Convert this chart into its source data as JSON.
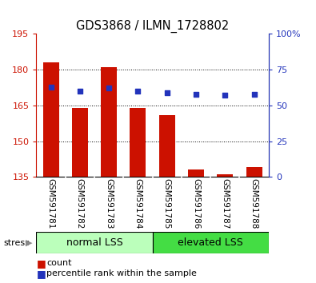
{
  "title": "GDS3868 / ILMN_1728802",
  "categories": [
    "GSM591781",
    "GSM591782",
    "GSM591783",
    "GSM591784",
    "GSM591785",
    "GSM591786",
    "GSM591787",
    "GSM591788"
  ],
  "bar_values": [
    183,
    164,
    181,
    164,
    161,
    138,
    136,
    139
  ],
  "percentile_values": [
    63,
    60,
    62,
    60,
    59,
    58,
    57,
    58
  ],
  "bar_color": "#cc1100",
  "percentile_color": "#2233bb",
  "ylim_left": [
    135,
    195
  ],
  "yticks_left": [
    135,
    150,
    165,
    180,
    195
  ],
  "grid_lines": [
    150,
    165,
    180
  ],
  "ylim_right": [
    0,
    100
  ],
  "yticks_right": [
    0,
    25,
    50,
    75,
    100
  ],
  "group1_label": "normal LSS",
  "group2_label": "elevated LSS",
  "group1_count": 4,
  "group2_count": 4,
  "stress_label": "stress",
  "legend_count": "count",
  "legend_percentile": "percentile rank within the sample",
  "group1_color": "#bbffbb",
  "group2_color": "#44dd44",
  "tick_area_color": "#cccccc",
  "background_color": "#ffffff"
}
